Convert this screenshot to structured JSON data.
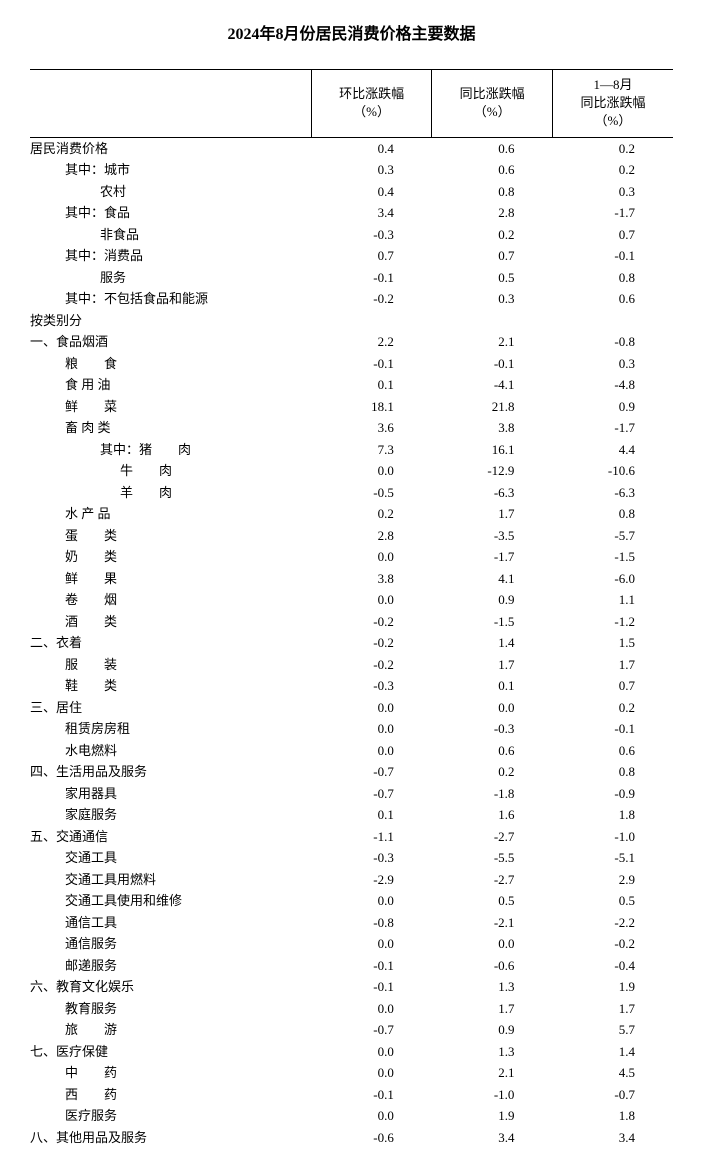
{
  "title": "2024年8月份居民消费价格主要数据",
  "columns": {
    "col1_line1": "环比涨跌幅",
    "col1_line2": "（%）",
    "col2_line1": "同比涨跌幅",
    "col2_line2": "（%）",
    "col3_line1": "1—8月",
    "col3_line2": "同比涨跌幅",
    "col3_line3": "（%）"
  },
  "rows": [
    {
      "label": "居民消费价格",
      "indent": 0,
      "v1": "0.4",
      "v2": "0.6",
      "v3": "0.2"
    },
    {
      "label": "其中：城市",
      "indent": 1,
      "v1": "0.3",
      "v2": "0.6",
      "v3": "0.2"
    },
    {
      "label": "农村",
      "indent": 2,
      "v1": "0.4",
      "v2": "0.8",
      "v3": "0.3"
    },
    {
      "label": "其中：食品",
      "indent": 1,
      "v1": "3.4",
      "v2": "2.8",
      "v3": "-1.7"
    },
    {
      "label": "非食品",
      "indent": 2,
      "v1": "-0.3",
      "v2": "0.2",
      "v3": "0.7"
    },
    {
      "label": "其中：消费品",
      "indent": 1,
      "v1": "0.7",
      "v2": "0.7",
      "v3": "-0.1"
    },
    {
      "label": "服务",
      "indent": 2,
      "v1": "-0.1",
      "v2": "0.5",
      "v3": "0.8"
    },
    {
      "label": "其中：不包括食品和能源",
      "indent": 1,
      "v1": "-0.2",
      "v2": "0.3",
      "v3": "0.6"
    },
    {
      "label": "按类别分",
      "indent": 0,
      "v1": "",
      "v2": "",
      "v3": ""
    },
    {
      "label": "一、食品烟酒",
      "indent": 0,
      "v1": "2.2",
      "v2": "2.1",
      "v3": "-0.8"
    },
    {
      "label": "粮　　食",
      "indent": 1,
      "v1": "-0.1",
      "v2": "-0.1",
      "v3": "0.3"
    },
    {
      "label": "食 用 油",
      "indent": 1,
      "v1": "0.1",
      "v2": "-4.1",
      "v3": "-4.8"
    },
    {
      "label": "鲜　　菜",
      "indent": 1,
      "v1": "18.1",
      "v2": "21.8",
      "v3": "0.9"
    },
    {
      "label": "畜 肉 类",
      "indent": 1,
      "v1": "3.6",
      "v2": "3.8",
      "v3": "-1.7"
    },
    {
      "label": "其中：猪　　肉",
      "indent": 2,
      "v1": "7.3",
      "v2": "16.1",
      "v3": "4.4"
    },
    {
      "label": "牛　　肉",
      "indent": 3,
      "v1": "0.0",
      "v2": "-12.9",
      "v3": "-10.6"
    },
    {
      "label": "羊　　肉",
      "indent": 3,
      "v1": "-0.5",
      "v2": "-6.3",
      "v3": "-6.3"
    },
    {
      "label": "水 产 品",
      "indent": 1,
      "v1": "0.2",
      "v2": "1.7",
      "v3": "0.8"
    },
    {
      "label": "蛋　　类",
      "indent": 1,
      "v1": "2.8",
      "v2": "-3.5",
      "v3": "-5.7"
    },
    {
      "label": "奶　　类",
      "indent": 1,
      "v1": "0.0",
      "v2": "-1.7",
      "v3": "-1.5"
    },
    {
      "label": "鲜　　果",
      "indent": 1,
      "v1": "3.8",
      "v2": "4.1",
      "v3": "-6.0"
    },
    {
      "label": "卷　　烟",
      "indent": 1,
      "v1": "0.0",
      "v2": "0.9",
      "v3": "1.1"
    },
    {
      "label": "酒　　类",
      "indent": 1,
      "v1": "-0.2",
      "v2": "-1.5",
      "v3": "-1.2"
    },
    {
      "label": "二、衣着",
      "indent": 0,
      "v1": "-0.2",
      "v2": "1.4",
      "v3": "1.5"
    },
    {
      "label": "服　　装",
      "indent": 1,
      "v1": "-0.2",
      "v2": "1.7",
      "v3": "1.7"
    },
    {
      "label": "鞋　　类",
      "indent": 1,
      "v1": "-0.3",
      "v2": "0.1",
      "v3": "0.7"
    },
    {
      "label": "三、居住",
      "indent": 0,
      "v1": "0.0",
      "v2": "0.0",
      "v3": "0.2"
    },
    {
      "label": "租赁房房租",
      "indent": 1,
      "v1": "0.0",
      "v2": "-0.3",
      "v3": "-0.1"
    },
    {
      "label": "水电燃料",
      "indent": 1,
      "v1": "0.0",
      "v2": "0.6",
      "v3": "0.6"
    },
    {
      "label": "四、生活用品及服务",
      "indent": 0,
      "v1": "-0.7",
      "v2": "0.2",
      "v3": "0.8"
    },
    {
      "label": "家用器具",
      "indent": 1,
      "v1": "-0.7",
      "v2": "-1.8",
      "v3": "-0.9"
    },
    {
      "label": "家庭服务",
      "indent": 1,
      "v1": "0.1",
      "v2": "1.6",
      "v3": "1.8"
    },
    {
      "label": "五、交通通信",
      "indent": 0,
      "v1": "-1.1",
      "v2": "-2.7",
      "v3": "-1.0"
    },
    {
      "label": "交通工具",
      "indent": 1,
      "v1": "-0.3",
      "v2": "-5.5",
      "v3": "-5.1"
    },
    {
      "label": "交通工具用燃料",
      "indent": 1,
      "v1": "-2.9",
      "v2": "-2.7",
      "v3": "2.9"
    },
    {
      "label": "交通工具使用和维修",
      "indent": 1,
      "v1": "0.0",
      "v2": "0.5",
      "v3": "0.5"
    },
    {
      "label": "通信工具",
      "indent": 1,
      "v1": "-0.8",
      "v2": "-2.1",
      "v3": "-2.2"
    },
    {
      "label": "通信服务",
      "indent": 1,
      "v1": "0.0",
      "v2": "0.0",
      "v3": "-0.2"
    },
    {
      "label": "邮递服务",
      "indent": 1,
      "v1": "-0.1",
      "v2": "-0.6",
      "v3": "-0.4"
    },
    {
      "label": "六、教育文化娱乐",
      "indent": 0,
      "v1": "-0.1",
      "v2": "1.3",
      "v3": "1.9"
    },
    {
      "label": "教育服务",
      "indent": 1,
      "v1": "0.0",
      "v2": "1.7",
      "v3": "1.7"
    },
    {
      "label": "旅　　游",
      "indent": 1,
      "v1": "-0.7",
      "v2": "0.9",
      "v3": "5.7"
    },
    {
      "label": "七、医疗保健",
      "indent": 0,
      "v1": "0.0",
      "v2": "1.3",
      "v3": "1.4"
    },
    {
      "label": "中　　药",
      "indent": 1,
      "v1": "0.0",
      "v2": "2.1",
      "v3": "4.5"
    },
    {
      "label": "西　　药",
      "indent": 1,
      "v1": "-0.1",
      "v2": "-1.0",
      "v3": "-0.7"
    },
    {
      "label": "医疗服务",
      "indent": 1,
      "v1": "0.0",
      "v2": "1.9",
      "v3": "1.8"
    },
    {
      "label": "八、其他用品及服务",
      "indent": 0,
      "v1": "-0.6",
      "v2": "3.4",
      "v3": "3.4"
    }
  ]
}
